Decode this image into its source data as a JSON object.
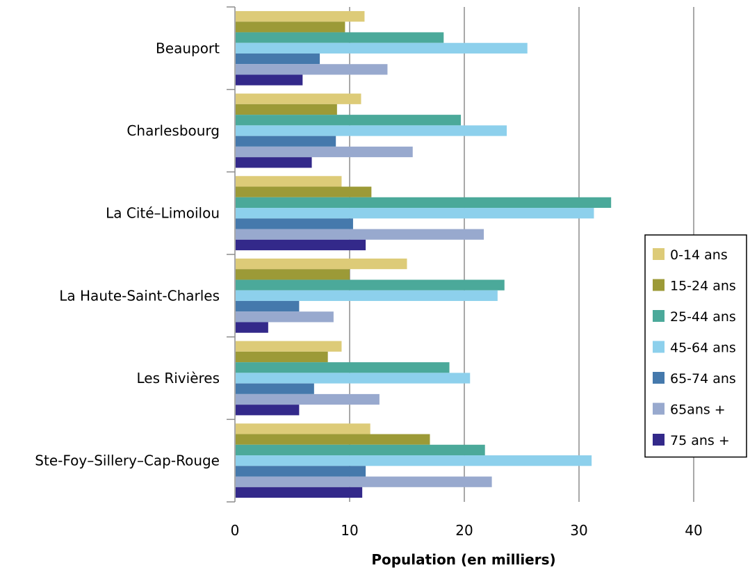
{
  "chart_data": {
    "type": "bar",
    "orientation": "horizontal",
    "title": "",
    "xlabel": "Population (en milliers)",
    "ylabel": "",
    "xlim": [
      0,
      40
    ],
    "xticks": [
      0,
      10,
      20,
      30,
      40
    ],
    "grid": "vertical major gridlines",
    "legend_position": "right",
    "categories": [
      "Beauport",
      "Charlesbourg",
      "La Cité–Limoilou",
      "La Haute-Saint-Charles",
      "Les Rivières",
      "Ste-Foy–Sillery–Cap-Rouge"
    ],
    "series": [
      {
        "name": "0-14 ans",
        "color": "#DDCB78",
        "values": [
          11.3,
          11.0,
          9.3,
          15.0,
          9.3,
          11.8
        ]
      },
      {
        "name": "15-24 ans",
        "color": "#9C9A37",
        "values": [
          9.6,
          8.9,
          11.9,
          10.0,
          8.1,
          17.0
        ]
      },
      {
        "name": "25-44 ans",
        "color": "#4BA99A",
        "values": [
          18.2,
          19.7,
          32.8,
          23.5,
          18.7,
          21.8
        ]
      },
      {
        "name": "45-64 ans",
        "color": "#8DD0EC",
        "values": [
          25.5,
          23.7,
          31.3,
          22.9,
          20.5,
          31.1
        ]
      },
      {
        "name": "65-74 ans",
        "color": "#4579AC",
        "values": [
          7.4,
          8.8,
          10.3,
          5.6,
          6.9,
          11.4
        ]
      },
      {
        "name": "65ans +",
        "color": "#98A9CE",
        "values": [
          13.3,
          15.5,
          21.7,
          8.6,
          12.6,
          22.4
        ]
      },
      {
        "name": "75 ans +",
        "color": "#33298A",
        "values": [
          5.9,
          6.7,
          11.4,
          2.9,
          5.6,
          11.1
        ]
      }
    ]
  }
}
